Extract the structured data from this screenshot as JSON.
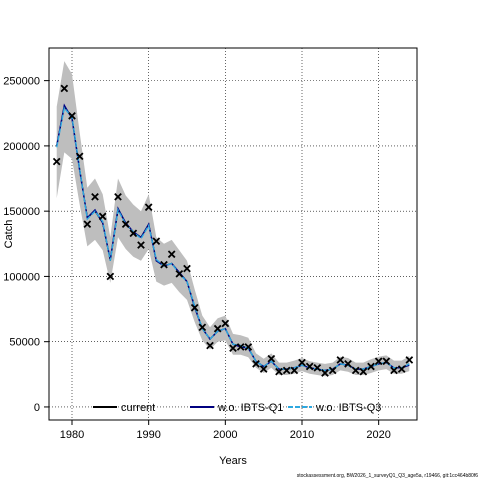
{
  "footer_text": "stockassessment.org, BW2026_1_surveyQ1_Q3_age5a, r19466, git:1cc464b80f6",
  "chart_data": {
    "type": "line",
    "title": "",
    "xlabel": "Years",
    "ylabel": "Catch",
    "xlim": [
      1977,
      2025
    ],
    "ylim": [
      -10000,
      275000
    ],
    "x_ticks": [
      1980,
      1990,
      2000,
      2010,
      2020
    ],
    "y_ticks": [
      0,
      50000,
      100000,
      150000,
      200000,
      250000
    ],
    "grid": true,
    "legend_position": "bottom-center",
    "colors": {
      "band": "#bebebe",
      "current": "#000000",
      "wo_q1": "#000080",
      "wo_q3": "#2da8e0",
      "observed": "#000000"
    },
    "legend": [
      {
        "label": "current",
        "color": "#000000",
        "dashed": false
      },
      {
        "label": "w.o. IBTS-Q1",
        "color": "#000080",
        "dashed": false
      },
      {
        "label": "w.o. IBTS-Q3",
        "color": "#2da8e0",
        "dashed": true
      }
    ],
    "years": [
      1978,
      1979,
      1980,
      1981,
      1982,
      1983,
      1984,
      1985,
      1986,
      1987,
      1988,
      1989,
      1990,
      1991,
      1992,
      1993,
      1994,
      1995,
      1996,
      1997,
      1998,
      1999,
      2000,
      2001,
      2002,
      2003,
      2004,
      2005,
      2006,
      2007,
      2008,
      2009,
      2010,
      2011,
      2012,
      2013,
      2014,
      2015,
      2016,
      2017,
      2018,
      2019,
      2020,
      2021,
      2022,
      2023,
      2024
    ],
    "observed": [
      188000,
      244000,
      223000,
      192000,
      140000,
      161000,
      146000,
      100000,
      161000,
      140000,
      133000,
      124000,
      153000,
      127000,
      109000,
      117000,
      102000,
      106000,
      76000,
      61000,
      47000,
      60000,
      64000,
      45000,
      46000,
      46000,
      33000,
      29000,
      37000,
      27000,
      28000,
      28000,
      34000,
      31000,
      30000,
      26000,
      28000,
      36000,
      33000,
      28000,
      27000,
      31000,
      35000,
      35000,
      28000,
      29000,
      36000
    ],
    "series": [
      {
        "name": "current",
        "values": [
          200000,
          230000,
          222000,
          182000,
          145000,
          150000,
          141000,
          112000,
          151000,
          141000,
          134000,
          130000,
          140000,
          112000,
          108000,
          110000,
          103000,
          96000,
          77000,
          60000,
          52000,
          58000,
          60000,
          48000,
          47000,
          45000,
          35000,
          31000,
          35000,
          29000,
          29000,
          30000,
          32000,
          30000,
          29000,
          28000,
          29000,
          33000,
          32000,
          29000,
          29000,
          31000,
          33000,
          34000,
          30000,
          30000,
          33000
        ]
      },
      {
        "name": "w.o. IBTS-Q1",
        "values": [
          200000,
          231000,
          221000,
          181000,
          145000,
          151000,
          141000,
          113000,
          152000,
          141000,
          134000,
          130000,
          140000,
          112000,
          108000,
          110000,
          103000,
          96000,
          76000,
          60000,
          52000,
          58000,
          60000,
          48000,
          46000,
          45000,
          35000,
          31000,
          35000,
          29000,
          29000,
          30000,
          32000,
          30000,
          29000,
          28000,
          29000,
          33000,
          32000,
          29000,
          29000,
          31000,
          33000,
          34000,
          30000,
          30000,
          32000
        ]
      },
      {
        "name": "w.o. IBTS-Q3",
        "values": [
          199000,
          229000,
          222000,
          182000,
          144000,
          150000,
          142000,
          112000,
          151000,
          140000,
          134000,
          129000,
          139000,
          113000,
          108000,
          110000,
          102000,
          96000,
          77000,
          60000,
          52000,
          58000,
          60000,
          48000,
          47000,
          45000,
          35000,
          31000,
          35000,
          29000,
          29000,
          30000,
          32000,
          30000,
          29000,
          28000,
          29000,
          33000,
          32000,
          29000,
          29000,
          31000,
          33000,
          34000,
          30000,
          30000,
          33000
        ]
      }
    ],
    "band_lower": [
      160000,
      195000,
      190000,
      155000,
      123000,
      128000,
      120000,
      95000,
      130000,
      121000,
      115000,
      112000,
      121000,
      96000,
      93000,
      95000,
      88000,
      82000,
      65000,
      51000,
      44000,
      50000,
      51000,
      40000,
      40000,
      38000,
      30000,
      26000,
      30000,
      24500,
      24500,
      25500,
      27500,
      25500,
      24500,
      23500,
      24500,
      28000,
      27000,
      24500,
      24500,
      26000,
      28000,
      29000,
      25500,
      25500,
      27500
    ],
    "band_upper": [
      230000,
      265000,
      255000,
      210000,
      168000,
      175000,
      163000,
      130000,
      175000,
      162000,
      155000,
      150000,
      163000,
      130000,
      125000,
      128000,
      120000,
      112000,
      90000,
      70000,
      61000,
      68000,
      70000,
      56000,
      55000,
      53000,
      41000,
      37000,
      41000,
      34000,
      34000,
      35500,
      37500,
      35000,
      34000,
      33000,
      34000,
      38500,
      37500,
      34000,
      34000,
      36500,
      38500,
      39500,
      35500,
      35500,
      39000
    ]
  }
}
